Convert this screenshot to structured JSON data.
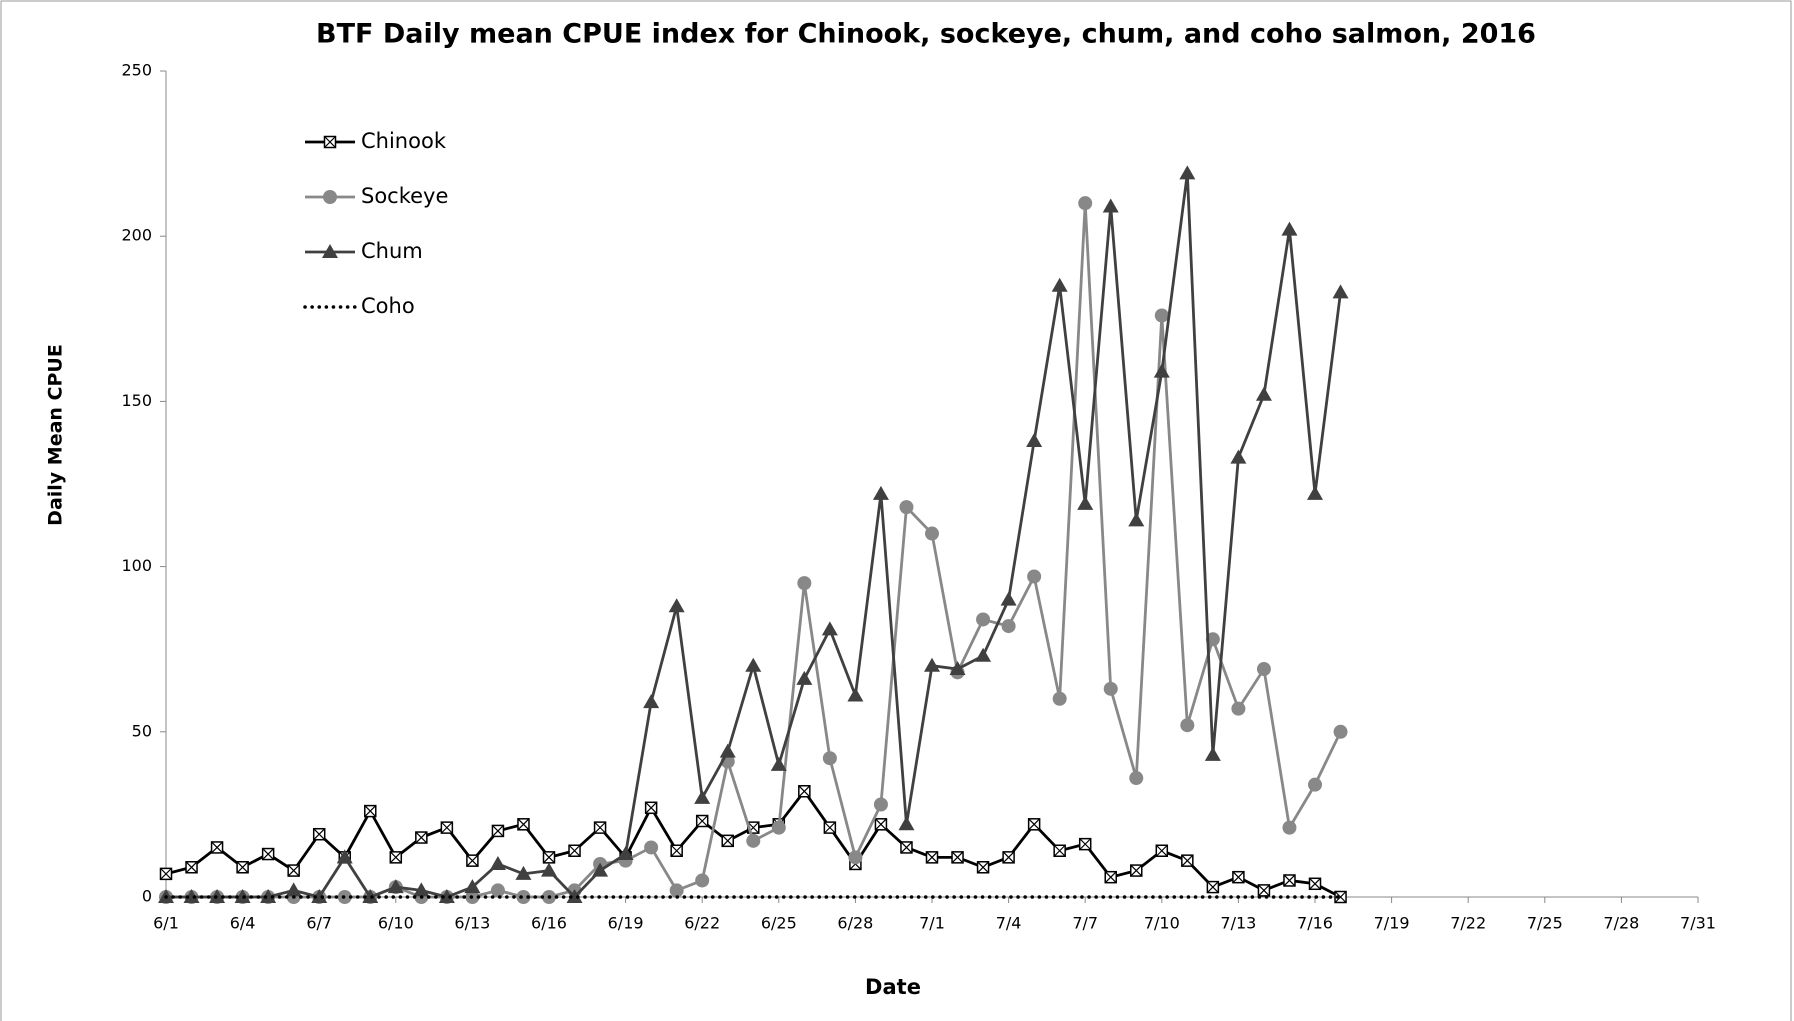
{
  "chart_data": {
    "type": "line",
    "title": "BTF Daily mean CPUE index for Chinook, sockeye, chum, and coho salmon, 2016",
    "x_label": "Date",
    "y_label": "Daily Mean CPUE",
    "categories": [
      "6/1",
      null,
      null,
      "6/4",
      null,
      null,
      "6/7",
      null,
      null,
      "6/10",
      null,
      null,
      "6/13",
      null,
      null,
      "6/16",
      null,
      null,
      "6/19",
      null,
      null,
      "6/22",
      null,
      null,
      "6/25",
      null,
      null,
      "6/28",
      null,
      null,
      "7/1",
      null,
      null,
      "7/4",
      null,
      null,
      "7/7",
      null,
      null,
      "7/10",
      null,
      null,
      "7/13",
      null,
      null,
      "7/16",
      null,
      null,
      "7/19",
      null,
      null,
      "7/22",
      null,
      null,
      "7/25",
      null,
      null,
      "7/28",
      null,
      null,
      "7/31"
    ],
    "ylim": [
      0,
      250
    ],
    "yticks": [
      0,
      50,
      100,
      150,
      200,
      250
    ],
    "grid": false,
    "series": [
      {
        "name": "Chinook",
        "color": "#000000",
        "marker": "square-x",
        "dash": "solid",
        "values": [
          7,
          9,
          15,
          9,
          13,
          8,
          19,
          12,
          26,
          12,
          18,
          21,
          11,
          20,
          22,
          12,
          14,
          21,
          12,
          27,
          14,
          23,
          17,
          21,
          22,
          32,
          21,
          10,
          22,
          15,
          12,
          12,
          9,
          12,
          22,
          14,
          16,
          6,
          8,
          14,
          11,
          3,
          6,
          2,
          5,
          4,
          0,
          null,
          null,
          null,
          null,
          null,
          null,
          null,
          null,
          null,
          null,
          null,
          null,
          null,
          null
        ]
      },
      {
        "name": "Sockeye",
        "color": "#888888",
        "marker": "circle",
        "dash": "solid",
        "values": [
          0,
          0,
          0,
          0,
          0,
          0,
          0,
          0,
          0,
          3,
          0,
          0,
          0,
          2,
          0,
          0,
          2,
          10,
          11,
          15,
          2,
          5,
          41,
          17,
          21,
          95,
          42,
          12,
          28,
          118,
          110,
          68,
          84,
          82,
          97,
          60,
          210,
          63,
          36,
          176,
          52,
          78,
          57,
          69,
          21,
          34,
          50,
          null,
          null,
          null,
          null,
          null,
          null,
          null,
          null,
          null,
          null,
          null,
          null,
          null,
          null
        ]
      },
      {
        "name": "Chum",
        "color": "#404040",
        "marker": "triangle",
        "dash": "solid",
        "values": [
          0,
          0,
          0,
          0,
          0,
          2,
          0,
          12,
          0,
          3,
          2,
          0,
          3,
          10,
          7,
          8,
          0,
          8,
          13,
          59,
          88,
          30,
          44,
          70,
          40,
          66,
          81,
          61,
          122,
          22,
          70,
          69,
          73,
          90,
          138,
          185,
          119,
          209,
          114,
          159,
          219,
          43,
          133,
          152,
          202,
          122,
          183,
          null,
          null,
          null,
          null,
          null,
          null,
          null,
          null,
          null,
          null,
          null,
          null,
          null,
          null
        ]
      },
      {
        "name": "Coho",
        "color": "#000000",
        "marker": "none",
        "dash": "dotted",
        "values": [
          0,
          0,
          0,
          0,
          0,
          0,
          0,
          0,
          0,
          0,
          0,
          0,
          0,
          0,
          0,
          0,
          0,
          0,
          0,
          0,
          0,
          0,
          0,
          0,
          0,
          0,
          0,
          0,
          0,
          0,
          0,
          0,
          0,
          0,
          0,
          0,
          0,
          0,
          0,
          0,
          0,
          0,
          0,
          0,
          0,
          0,
          0,
          null,
          null,
          null,
          null,
          null,
          null,
          null,
          null,
          null,
          null,
          null,
          null,
          null,
          null
        ]
      }
    ]
  }
}
